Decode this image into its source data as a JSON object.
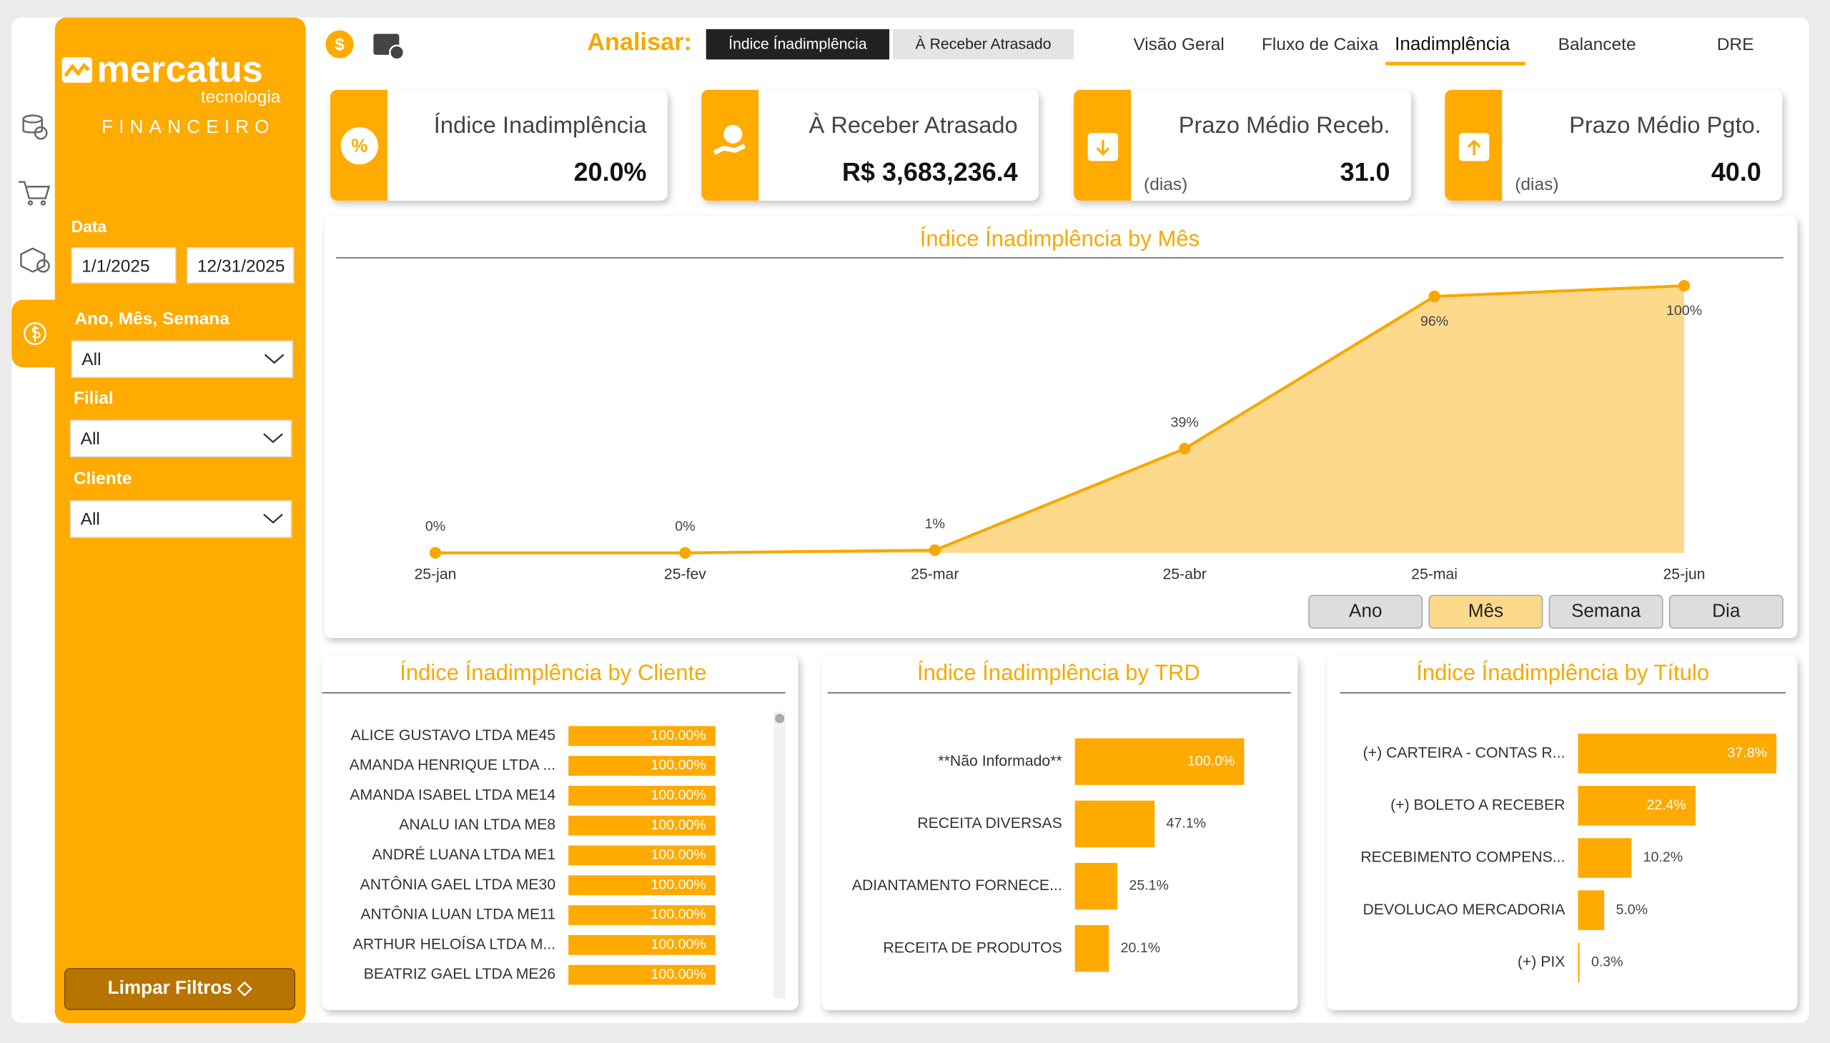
{
  "sidebar": {
    "logo": "mercatus",
    "logo_sub": "tecnologia",
    "module": "FINANCEIRO",
    "date_label": "Data",
    "date_start": "1/1/2025",
    "date_end": "12/31/2025",
    "filters": [
      {
        "label": "Ano, Mês, Semana",
        "value": "All"
      },
      {
        "label": "Filial",
        "value": "All"
      },
      {
        "label": "Cliente",
        "value": "All"
      }
    ],
    "clear_button": "Limpar Filtros"
  },
  "header": {
    "analyze_label": "Analisar:",
    "analyze_options": [
      "Índice Ínadimplência",
      "À Receber Atrasado"
    ],
    "tabs": [
      "Visão Geral",
      "Fluxo de Caixa",
      "Inadimplência",
      "Balancete",
      "DRE"
    ]
  },
  "kpis": [
    {
      "title": "Índice Inadimplência",
      "value": "20.0%"
    },
    {
      "title": "À Receber Atrasado",
      "value": "R$ 3,683,236.4"
    },
    {
      "title": "Prazo Médio Receb.",
      "unit": "(dias)",
      "value": "31.0"
    },
    {
      "title": "Prazo Médio Pgto.",
      "unit": "(dias)",
      "value": "40.0"
    }
  ],
  "granularity_buttons": [
    "Ano",
    "Mês",
    "Semana",
    "Dia"
  ],
  "chart_data": [
    {
      "type": "line",
      "title": "Índice Ínadimplência by Mês",
      "categories": [
        "25-jan",
        "25-fev",
        "25-mar",
        "25-abr",
        "25-mai",
        "25-jun"
      ],
      "values": [
        0,
        0,
        1,
        39,
        96,
        100
      ],
      "value_labels": [
        "0%",
        "0%",
        "1%",
        "39%",
        "96%",
        "100%"
      ],
      "color": "#f7a800",
      "area_color": "#fdd98c"
    },
    {
      "type": "hbar",
      "title": "Índice Ínadimplência by Cliente",
      "categories": [
        "ALICE GUSTAVO LTDA ME45",
        "AMANDA HENRIQUE LTDA ...",
        "AMANDA ISABEL LTDA ME14",
        "ANALU IAN LTDA ME8",
        "ANDRÉ LUANA LTDA ME1",
        "ANTÔNIA GAEL LTDA ME30",
        "ANTÔNIA LUAN LTDA ME11",
        "ARTHUR HELOÍSA LTDA M...",
        "BEATRIZ GAEL LTDA ME26"
      ],
      "values": [
        100,
        100,
        100,
        100,
        100,
        100,
        100,
        100,
        100
      ],
      "value_labels": [
        "100.00%",
        "100.00%",
        "100.00%",
        "100.00%",
        "100.00%",
        "100.00%",
        "100.00%",
        "100.00%",
        "100.00%"
      ],
      "color": "#ffaa00"
    },
    {
      "type": "hbar",
      "title": "Índice Ínadimplência by TRD",
      "categories": [
        "**Não Informado**",
        "RECEITA DIVERSAS",
        "ADIANTAMENTO FORNECE...",
        "RECEITA DE PRODUTOS"
      ],
      "values": [
        100,
        47.1,
        25.1,
        20.1
      ],
      "value_labels": [
        "100.0%",
        "47.1%",
        "25.1%",
        "20.1%"
      ],
      "color": "#ffaa00"
    },
    {
      "type": "hbar",
      "title": "Índice Ínadimplência by Título",
      "categories": [
        "(+) CARTEIRA - CONTAS R...",
        "(+) BOLETO A RECEBER",
        "RECEBIMENTO COMPENS...",
        "DEVOLUCAO MERCADORIA",
        "(+) PIX"
      ],
      "values": [
        37.8,
        22.4,
        10.2,
        5.0,
        0.3
      ],
      "value_labels": [
        "37.8%",
        "22.4%",
        "10.2%",
        "5.0%",
        "0.3%"
      ],
      "color": "#ffaa00"
    }
  ]
}
